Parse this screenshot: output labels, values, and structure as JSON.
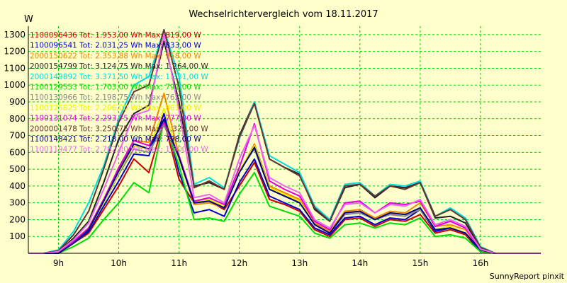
{
  "chart_data": {
    "type": "line",
    "title": "Wechselrichtervergleich vom 18.11.2017",
    "ylabel": "W",
    "xlabel": "",
    "footer": "SunnyReport pinxit",
    "ylim": [
      0,
      1350
    ],
    "xlim": [
      8.5,
      17
    ],
    "yticks": [
      100,
      200,
      300,
      400,
      500,
      600,
      700,
      800,
      900,
      1000,
      1100,
      1200,
      1300
    ],
    "xticks": [
      {
        "value": 9,
        "label": "9h"
      },
      {
        "value": 10,
        "label": "10h"
      },
      {
        "value": 11,
        "label": "11h"
      },
      {
        "value": 12,
        "label": "12h"
      },
      {
        "value": 13,
        "label": "13h"
      },
      {
        "value": 14,
        "label": "14h"
      },
      {
        "value": 15,
        "label": "15h"
      },
      {
        "value": 16,
        "label": "16h"
      }
    ],
    "grid": true,
    "legend_placement": "top-left",
    "colors": {
      "background": "#ffffcc",
      "plot_background": "#ffffcc",
      "grid": "#00cc00",
      "axis": "#000000"
    },
    "x": [
      8.5,
      8.75,
      9.0,
      9.25,
      9.5,
      9.75,
      10.0,
      10.25,
      10.5,
      10.75,
      11.0,
      11.25,
      11.5,
      11.75,
      12.0,
      12.25,
      12.5,
      12.75,
      13.0,
      13.25,
      13.5,
      13.75,
      14.0,
      14.25,
      14.5,
      14.75,
      15.0,
      15.25,
      15.5,
      15.75,
      16.0,
      16.25,
      16.5,
      16.75,
      17.0
    ],
    "series": [
      {
        "name": "1100096436 Tot: 1.953,00 Wh Max: 819,00 W",
        "color": "#cc0000",
        "values": [
          0,
          0,
          0,
          60,
          120,
          260,
          400,
          560,
          480,
          790,
          440,
          300,
          310,
          260,
          400,
          540,
          320,
          290,
          250,
          140,
          100,
          200,
          210,
          160,
          200,
          190,
          230,
          120,
          140,
          110,
          10,
          0,
          0,
          0,
          0
        ]
      },
      {
        "name": "1100096541 Tot: 2.031,25 Wh Max: 833,00 W",
        "color": "#0000cc",
        "values": [
          0,
          0,
          0,
          60,
          130,
          280,
          430,
          590,
          580,
          830,
          480,
          240,
          260,
          220,
          420,
          560,
          340,
          300,
          260,
          150,
          110,
          210,
          220,
          170,
          210,
          200,
          260,
          130,
          150,
          120,
          10,
          0,
          0,
          0,
          0
        ]
      },
      {
        "name": "2000150622 Tot: 2.353,88 Wh Max: 958,00 W",
        "color": "#ee8800",
        "values": [
          0,
          0,
          10,
          70,
          150,
          320,
          500,
          670,
          660,
          950,
          580,
          290,
          300,
          270,
          480,
          650,
          400,
          360,
          320,
          180,
          130,
          250,
          260,
          210,
          250,
          240,
          300,
          160,
          170,
          140,
          20,
          0,
          0,
          0,
          0
        ]
      },
      {
        "name": "2000154799 Tot: 3.124,75 Wh Max: 1.264,00 W",
        "color": "#222222",
        "values": [
          0,
          0,
          10,
          90,
          190,
          420,
          680,
          830,
          880,
          1260,
          900,
          400,
          420,
          380,
          700,
          900,
          560,
          510,
          470,
          260,
          190,
          390,
          410,
          330,
          400,
          390,
          420,
          210,
          220,
          180,
          30,
          0,
          0,
          0,
          0
        ]
      },
      {
        "name": "2000149892 Tot: 3.371,50 Wh Max: 1.331,00 W",
        "color": "#00dddd",
        "values": [
          0,
          0,
          20,
          130,
          300,
          520,
          800,
          1000,
          1050,
          1330,
          1050,
          410,
          450,
          390,
          680,
          900,
          580,
          530,
          480,
          280,
          200,
          410,
          420,
          340,
          410,
          400,
          430,
          220,
          270,
          210,
          40,
          0,
          0,
          0,
          0
        ]
      },
      {
        "name": "1100129553 Tot: 1.703,00 Wh Max: 791,00 W",
        "color": "#00dd00",
        "values": [
          0,
          0,
          0,
          40,
          90,
          200,
          300,
          420,
          360,
          790,
          520,
          200,
          210,
          190,
          350,
          480,
          280,
          250,
          220,
          120,
          90,
          170,
          180,
          150,
          180,
          170,
          210,
          100,
          110,
          90,
          10,
          0,
          0,
          0,
          0
        ]
      },
      {
        "name": "1100130966 Tot: 2.198,75 Wh Max: 762,00 W",
        "color": "#888888",
        "values": [
          0,
          0,
          0,
          60,
          140,
          300,
          470,
          620,
          600,
          760,
          570,
          310,
          320,
          270,
          490,
          620,
          380,
          340,
          300,
          170,
          120,
          230,
          240,
          200,
          230,
          220,
          260,
          140,
          150,
          120,
          20,
          0,
          0,
          0,
          0
        ]
      },
      {
        "name": "1100125825 Tot: 2.206,00 Wh Max: 861,00 W",
        "color": "#eeee00",
        "values": [
          0,
          0,
          0,
          60,
          140,
          300,
          480,
          640,
          620,
          860,
          560,
          300,
          320,
          280,
          490,
          640,
          390,
          350,
          310,
          170,
          120,
          240,
          250,
          200,
          240,
          230,
          270,
          140,
          160,
          120,
          20,
          0,
          0,
          0,
          0
        ]
      },
      {
        "name": "1100131074 Tot: 2.293,75 Wh Max: 777,00 W",
        "color": "#dd00dd",
        "values": [
          0,
          0,
          0,
          70,
          150,
          320,
          510,
          670,
          640,
          777,
          580,
          310,
          330,
          290,
          510,
          770,
          430,
          380,
          340,
          190,
          140,
          300,
          310,
          240,
          300,
          290,
          310,
          160,
          190,
          150,
          20,
          0,
          0,
          0,
          0
        ]
      },
      {
        "name": "2000001478 Tot: 3.250,75 Wh Max: 1.329,00 W",
        "color": "#663333",
        "values": [
          0,
          0,
          15,
          110,
          250,
          500,
          780,
          960,
          1000,
          1329,
          990,
          390,
          430,
          380,
          690,
          890,
          560,
          510,
          460,
          270,
          190,
          400,
          410,
          340,
          400,
          380,
          420,
          220,
          260,
          200,
          35,
          0,
          0,
          0,
          0
        ]
      },
      {
        "name": "1100148421 Tot: 2.218,00 Wh Max: 798,00 W",
        "color": "#000088",
        "values": [
          0,
          0,
          0,
          60,
          140,
          310,
          490,
          650,
          620,
          798,
          570,
          300,
          310,
          270,
          480,
          630,
          380,
          340,
          300,
          170,
          120,
          240,
          250,
          200,
          240,
          230,
          270,
          140,
          150,
          120,
          20,
          0,
          0,
          0,
          0
        ]
      },
      {
        "name": "1100119477 Tot: 2.782,00 Wh Max: 1.300,00 W",
        "color": "#ee66ee",
        "values": [
          0,
          0,
          10,
          80,
          180,
          380,
          600,
          820,
          850,
          1300,
          850,
          330,
          350,
          300,
          560,
          760,
          450,
          400,
          360,
          200,
          150,
          290,
          300,
          240,
          290,
          280,
          320,
          170,
          200,
          160,
          25,
          0,
          0,
          0,
          0
        ]
      }
    ]
  }
}
